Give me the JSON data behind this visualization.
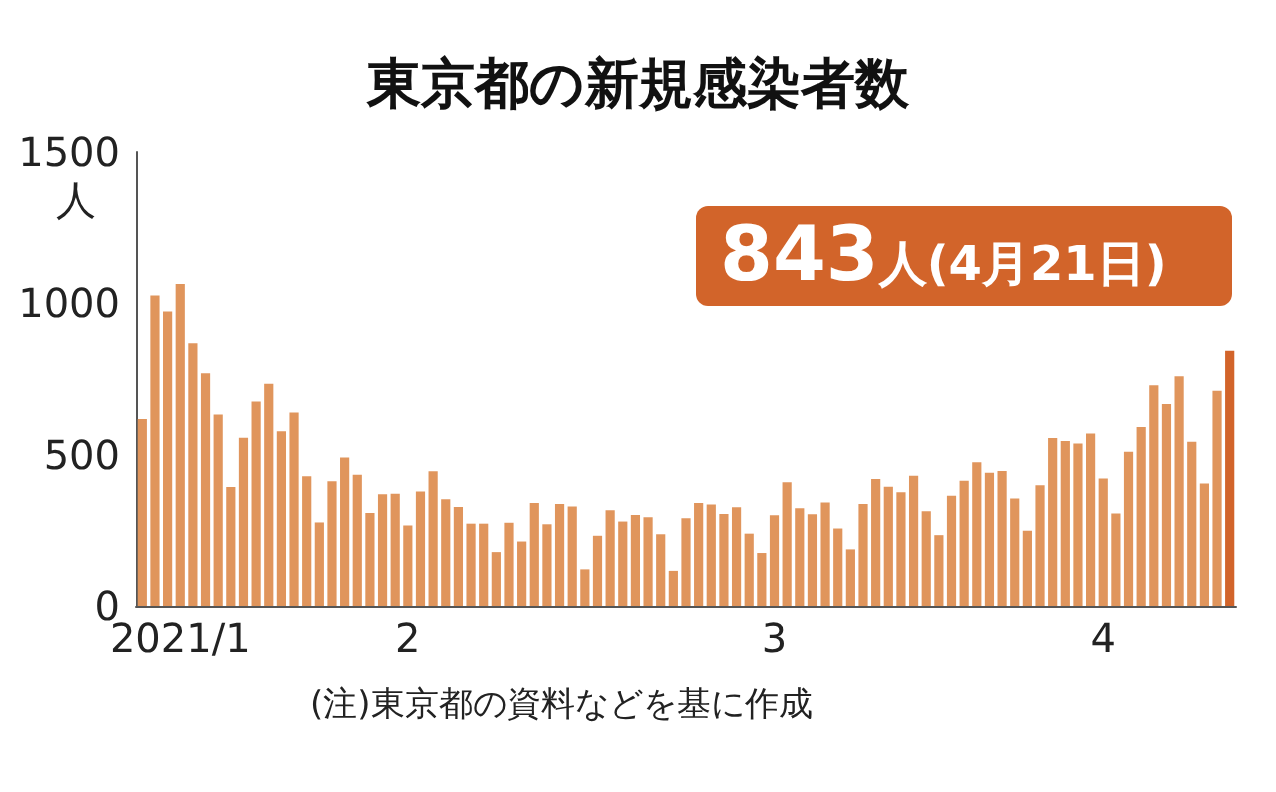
{
  "chart_data": {
    "type": "bar",
    "title": "東京都の新規感染者数",
    "ylabel": "人",
    "x": [
      "2021-01-25",
      "2021-01-26",
      "2021-01-27",
      "2021-01-28",
      "2021-01-29",
      "2021-01-30",
      "2021-01-31",
      "2021-02-01",
      "2021-02-02",
      "2021-02-03",
      "2021-02-04",
      "2021-02-05",
      "2021-02-06",
      "2021-02-07",
      "2021-02-08",
      "2021-02-09",
      "2021-02-10",
      "2021-02-11",
      "2021-02-12",
      "2021-02-13",
      "2021-02-14",
      "2021-02-15",
      "2021-02-16",
      "2021-02-17",
      "2021-02-18",
      "2021-02-19",
      "2021-02-20",
      "2021-02-21",
      "2021-02-22",
      "2021-02-23",
      "2021-02-24",
      "2021-02-25",
      "2021-02-26",
      "2021-02-27",
      "2021-02-28",
      "2021-03-01",
      "2021-03-02",
      "2021-03-03",
      "2021-03-04",
      "2021-03-05",
      "2021-03-06",
      "2021-03-07",
      "2021-03-08",
      "2021-03-09",
      "2021-03-10",
      "2021-03-11",
      "2021-03-12",
      "2021-03-13",
      "2021-03-14",
      "2021-03-15",
      "2021-03-16",
      "2021-03-17",
      "2021-03-18",
      "2021-03-19",
      "2021-03-20",
      "2021-03-21",
      "2021-03-22",
      "2021-03-23",
      "2021-03-24",
      "2021-03-25",
      "2021-03-26",
      "2021-03-27",
      "2021-03-28",
      "2021-03-29",
      "2021-03-30",
      "2021-03-31",
      "2021-04-01",
      "2021-04-02",
      "2021-04-03",
      "2021-04-04",
      "2021-04-05",
      "2021-04-06",
      "2021-04-07",
      "2021-04-08",
      "2021-04-09",
      "2021-04-10",
      "2021-04-11",
      "2021-04-12",
      "2021-04-13",
      "2021-04-14",
      "2021-04-15",
      "2021-04-16",
      "2021-04-17",
      "2021-04-18",
      "2021-04-19",
      "2021-04-20",
      "2021-04-21"
    ],
    "values": [
      618,
      1026,
      973,
      1064,
      868,
      769,
      633,
      393,
      556,
      676,
      734,
      577,
      639,
      429,
      276,
      412,
      491,
      434,
      307,
      369,
      371,
      266,
      378,
      445,
      353,
      327,
      272,
      272,
      178,
      275,
      213,
      340,
      270,
      337,
      329,
      121,
      232,
      316,
      279,
      301,
      293,
      237,
      116,
      290,
      340,
      335,
      304,
      326,
      239,
      175,
      300,
      409,
      323,
      303,
      342,
      256,
      187,
      337,
      420,
      394,
      376,
      430,
      313,
      234,
      364,
      414,
      475,
      440,
      446,
      355,
      249,
      399,
      555,
      545,
      537,
      570,
      421,
      306,
      510,
      591,
      729,
      667,
      759,
      543,
      405,
      711,
      843
    ],
    "colors": [
      "#e0955c",
      "#e0955c",
      "#e0955c",
      "#e0955c",
      "#e0955c",
      "#e0955c",
      "#e0955c",
      "#e0955c",
      "#e0955c",
      "#e0955c",
      "#e0955c",
      "#e0955c",
      "#e0955c",
      "#e0955c",
      "#e0955c",
      "#e0955c",
      "#e0955c",
      "#e0955c",
      "#e0955c",
      "#e0955c",
      "#e0955c",
      "#e0955c",
      "#e0955c",
      "#e0955c",
      "#e0955c",
      "#e0955c",
      "#e0955c",
      "#e0955c",
      "#e0955c",
      "#e0955c",
      "#e0955c",
      "#e0955c",
      "#e0955c",
      "#e0955c",
      "#e0955c",
      "#e0955c",
      "#e0955c",
      "#e0955c",
      "#e0955c",
      "#e0955c",
      "#e0955c",
      "#e0955c",
      "#e0955c",
      "#e0955c",
      "#e0955c",
      "#e0955c",
      "#e0955c",
      "#e0955c",
      "#e0955c",
      "#e0955c",
      "#e0955c",
      "#e0955c",
      "#e0955c",
      "#e0955c",
      "#e0955c",
      "#e0955c",
      "#e0955c",
      "#e0955c",
      "#e0955c",
      "#e0955c",
      "#e0955c",
      "#e0955c",
      "#e0955c",
      "#e0955c",
      "#e0955c",
      "#e0955c",
      "#e0955c",
      "#e0955c",
      "#e0955c",
      "#e0955c",
      "#e0955c",
      "#e0955c",
      "#e0955c",
      "#e0955c",
      "#e0955c",
      "#e0955c",
      "#e0955c",
      "#e0955c",
      "#e0955c",
      "#e0955c",
      "#e0955c",
      "#e0955c",
      "#e0955c",
      "#e0955c",
      "#e0955c",
      "#e0955c",
      "#d2642a"
    ],
    "xlim": [
      "2021-01-24T12:00",
      "2021-04-21T12:00"
    ],
    "xticks": [
      {
        "value": "2021-01-28",
        "label": "2021/1"
      },
      {
        "value": "2021-02-01",
        "label": null
      },
      {
        "value": "2021-02-15",
        "label": "2"
      },
      {
        "value": "2021-03-01",
        "label": null
      },
      {
        "value": "2021-03-16",
        "label": "3"
      },
      {
        "value": "2021-04-01",
        "label": null
      },
      {
        "value": "2021-04-11",
        "label": "4"
      }
    ],
    "ylim": [
      0,
      1500
    ],
    "yticks": [
      0,
      500,
      1000,
      1500
    ],
    "grid": false,
    "annotations": [
      "843人(4月21日)",
      "(注)東京都の資料などを基に作成"
    ]
  }
}
